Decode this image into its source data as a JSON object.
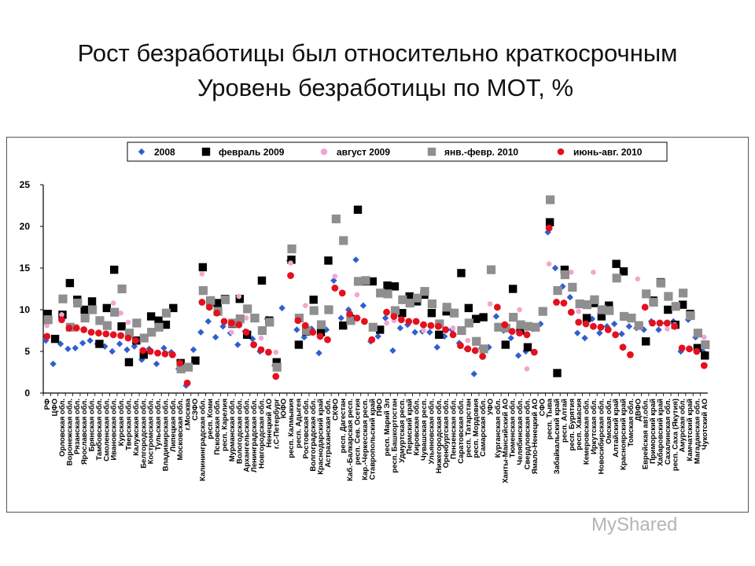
{
  "page": {
    "title_line1": "Рост безработицы был относительно краткосрочным",
    "title_line2": "Уровень безработицы по МОТ, %",
    "watermark": "MyShared"
  },
  "chart_data": {
    "type": "scatter",
    "ylim": [
      0,
      25
    ],
    "yticks": [
      0,
      5,
      10,
      15,
      20,
      25
    ],
    "grid": false,
    "legend_position": "top",
    "categories": [
      "РФ",
      "ЦФО",
      "Орловская обл.",
      "Воронежская обл.",
      "Рязанская обл.",
      "Ярославская обл.",
      "Брянская обл.",
      "Тамбовская обл.",
      "Смоленская обл.",
      "Ивановская обл.",
      "Курская обл.",
      "Тверская обл.",
      "Калужская обл.",
      "Белгородская обл.",
      "Костромская обл.",
      "Тульская обл.",
      "Владимирская обл.",
      "Липецкая обл.",
      "Московская обл.",
      "г.Москва",
      "СЗФО",
      "Калининградская обл.",
      "респ. Коми",
      "Псковская обл.",
      "респ. Карелия",
      "Мурманская обл.",
      "Вологодская обл.",
      "Архангельская обл.",
      "Ленинградская обл.",
      "Новгородская обл.",
      "Ненецкий АО",
      "г.С-Петербург",
      "ЮФО",
      "респ. Калмыкия",
      "респ. Адыгея",
      "Ростовская обл.",
      "Волгоградская обл.",
      "Краснодарский край",
      "Астраханская обл.",
      "СКФО",
      "респ. Дагестан",
      "Каб.-Балкарская респ.",
      "респ. Сев. Осетия",
      "Кар.-Черкесская респ.",
      "Ставропольский край",
      "ПФО",
      "респ. Марий Эл",
      "респ. Башкортостан",
      "Удмуртская респ.",
      "Пермский край",
      "Кировская обл.",
      "Чувашская респ.",
      "Ульяновская обл.",
      "Нижегородская обл.",
      "Оренбургская обл.",
      "Пензенская обл.",
      "Саратовская обл.",
      "респ. Татарстан",
      "респ. Мордовия",
      "Самарская обл.",
      "УФО",
      "Курганская обл.",
      "Ханты-Мансийский АО",
      "Тюменская обл.",
      "Челябинская обл.",
      "Свердловская обл.",
      "Ямало-Ненецкий АО",
      "СФО",
      "респ. Тыва",
      "Забайкальский край",
      "респ. Алтай",
      "респ. Бурятия",
      "респ. Хакасия",
      "Кемеровская обл.",
      "Иркутская обл.",
      "Новосибирская обл.",
      "Омская обл.",
      "Алтайский край",
      "Красноярский край",
      "Томская обл.",
      "ДВФО",
      "Еврейская авт.обл.",
      "Приморский край",
      "Хабаровский край",
      "Сахалинская обл.",
      "респ. Саха (Якутия)",
      "Амурская обл.",
      "Камчатский край",
      "Магаданская обл.",
      "Чукотский АО"
    ],
    "series": [
      {
        "name": "2008",
        "color": "#2f5fcf",
        "marker": "diamond",
        "values": [
          6.3,
          3.5,
          5.9,
          5.3,
          5.4,
          6.0,
          6.3,
          5.9,
          5.6,
          5.0,
          5.9,
          5.2,
          5.6,
          4.0,
          5.3,
          3.5,
          5.4,
          4.9,
          2.9,
          0.9,
          5.2,
          7.3,
          8.6,
          6.7,
          8.0,
          7.2,
          5.8,
          7.4,
          6.5,
          5.0,
          8.9,
          3.3,
          10.2,
          15.9,
          7.6,
          6.7,
          7.7,
          4.8,
          7.6,
          13.5,
          9.0,
          10.0,
          16.0,
          10.5,
          6.2,
          6.8,
          9.0,
          5.1,
          7.8,
          8.2,
          7.3,
          7.4,
          7.3,
          5.5,
          6.8,
          7.6,
          6.0,
          5.3,
          2.3,
          5.4,
          5.5,
          9.2,
          7.5,
          6.6,
          4.5,
          5.0,
          7.7,
          8.3,
          19.3,
          15.0,
          12.8,
          11.5,
          7.2,
          6.6,
          8.9,
          7.2,
          8.0,
          8.3,
          7.1,
          8.0,
          7.8,
          7.6,
          8.6,
          7.6,
          8.4,
          8.6,
          5.0,
          8.8,
          6.7,
          5.0
        ]
      },
      {
        "name": "февраль 2009",
        "color": "#000000",
        "marker": "square",
        "values": [
          9.5,
          6.5,
          9.4,
          13.2,
          11.2,
          10.0,
          11.0,
          5.9,
          10.2,
          14.8,
          8.0,
          3.7,
          6.3,
          4.6,
          9.2,
          8.7,
          8.2,
          10.2,
          3.6,
          3.1,
          3.9,
          15.1,
          11.0,
          10.8,
          11.3,
          8.3,
          11.3,
          7.0,
          9.0,
          13.5,
          8.7,
          3.7,
          null,
          16.0,
          5.8,
          7.4,
          11.2,
          7.3,
          15.9,
          null,
          8.1,
          8.9,
          22.0,
          13.4,
          13.4,
          7.6,
          12.9,
          12.8,
          9.6,
          11.6,
          11.0,
          11.8,
          9.6,
          7.0,
          9.8,
          9.6,
          14.4,
          10.2,
          8.9,
          9.1,
          null,
          null,
          5.8,
          12.5,
          7.5,
          5.5,
          null,
          null,
          20.5,
          2.4,
          14.8,
          null,
          null,
          9.0,
          10.8,
          9.2,
          10.5,
          15.5,
          14.6,
          null,
          null,
          6.2,
          11.1,
          13.3,
          10.0,
          8.2,
          10.6,
          9.5,
          5.4,
          4.5
        ]
      },
      {
        "name": "август 2009",
        "color": "#f2a6d0",
        "marker": "circle",
        "values": [
          8.1,
          null,
          9.4,
          null,
          8.0,
          null,
          null,
          null,
          null,
          10.8,
          9.6,
          8.5,
          null,
          null,
          null,
          null,
          null,
          4.7,
          null,
          null,
          null,
          14.3,
          10.6,
          null,
          null,
          7.3,
          11.6,
          9.0,
          null,
          6.6,
          null,
          4.9,
          null,
          15.6,
          null,
          10.5,
          null,
          null,
          null,
          14.0,
          null,
          null,
          11.8,
          null,
          null,
          null,
          8.4,
          8.7,
          null,
          null,
          null,
          7.5,
          null,
          null,
          null,
          7.8,
          null,
          6.3,
          null,
          null,
          10.7,
          null,
          null,
          null,
          10.0,
          2.9,
          null,
          null,
          15.5,
          null,
          null,
          14.5,
          9.8,
          null,
          14.5,
          null,
          null,
          null,
          null,
          null,
          13.7,
          null,
          null,
          null,
          7.7,
          8.2,
          null,
          null,
          null,
          6.7
        ]
      },
      {
        "name": "янв.-февр. 2010",
        "color": "#8f8f8f",
        "marker": "square",
        "values": [
          8.8,
          null,
          11.3,
          7.9,
          10.8,
          9.0,
          10.0,
          8.7,
          8.1,
          9.7,
          12.5,
          7.2,
          8.4,
          6.6,
          7.3,
          7.9,
          9.6,
          null,
          2.9,
          3.1,
          null,
          12.3,
          11.1,
          9.8,
          11.2,
          8.4,
          8.9,
          10.1,
          9.0,
          7.5,
          8.5,
          3.1,
          null,
          17.3,
          9.0,
          7.5,
          9.9,
          8.2,
          10.0,
          20.9,
          18.3,
          8.7,
          13.4,
          13.5,
          7.9,
          12.0,
          11.9,
          9.9,
          11.2,
          10.8,
          11.4,
          12.2,
          10.7,
          8.3,
          10.3,
          9.6,
          7.5,
          8.4,
          6.2,
          5.3,
          14.8,
          7.9,
          7.8,
          9.1,
          8.2,
          8.0,
          7.9,
          9.8,
          23.2,
          12.3,
          14.2,
          12.7,
          10.7,
          10.6,
          11.2,
          10.0,
          9.9,
          13.8,
          9.2,
          9.0,
          8.1,
          11.9,
          10.9,
          13.2,
          11.6,
          10.4,
          12.0,
          9.3,
          7.2,
          5.8
        ]
      },
      {
        "name": "июнь-авг. 2010",
        "color": "#e4101e",
        "marker": "circle",
        "values": [
          6.8,
          null,
          8.8,
          7.8,
          7.8,
          7.6,
          7.3,
          7.2,
          7.1,
          7.0,
          6.9,
          6.6,
          6.3,
          5.1,
          5.0,
          4.8,
          4.7,
          4.6,
          3.6,
          1.2,
          null,
          10.9,
          10.3,
          9.6,
          8.6,
          8.4,
          8.2,
          7.3,
          5.8,
          5.2,
          4.9,
          2.0,
          null,
          14.1,
          8.7,
          8.1,
          7.3,
          6.8,
          6.4,
          12.6,
          12.0,
          9.5,
          9.0,
          8.6,
          6.4,
          null,
          9.7,
          9.2,
          8.8,
          8.6,
          8.6,
          8.2,
          8.1,
          8.0,
          7.6,
          7.0,
          5.7,
          5.3,
          5.1,
          4.4,
          null,
          10.3,
          8.2,
          7.4,
          7.2,
          7.0,
          4.9,
          null,
          19.8,
          10.9,
          10.8,
          9.7,
          8.5,
          8.3,
          8.0,
          7.9,
          7.6,
          7.0,
          5.5,
          4.6,
          null,
          10.3,
          8.4,
          8.4,
          8.4,
          8.0,
          5.4,
          5.3,
          5.0,
          3.3
        ]
      }
    ]
  }
}
